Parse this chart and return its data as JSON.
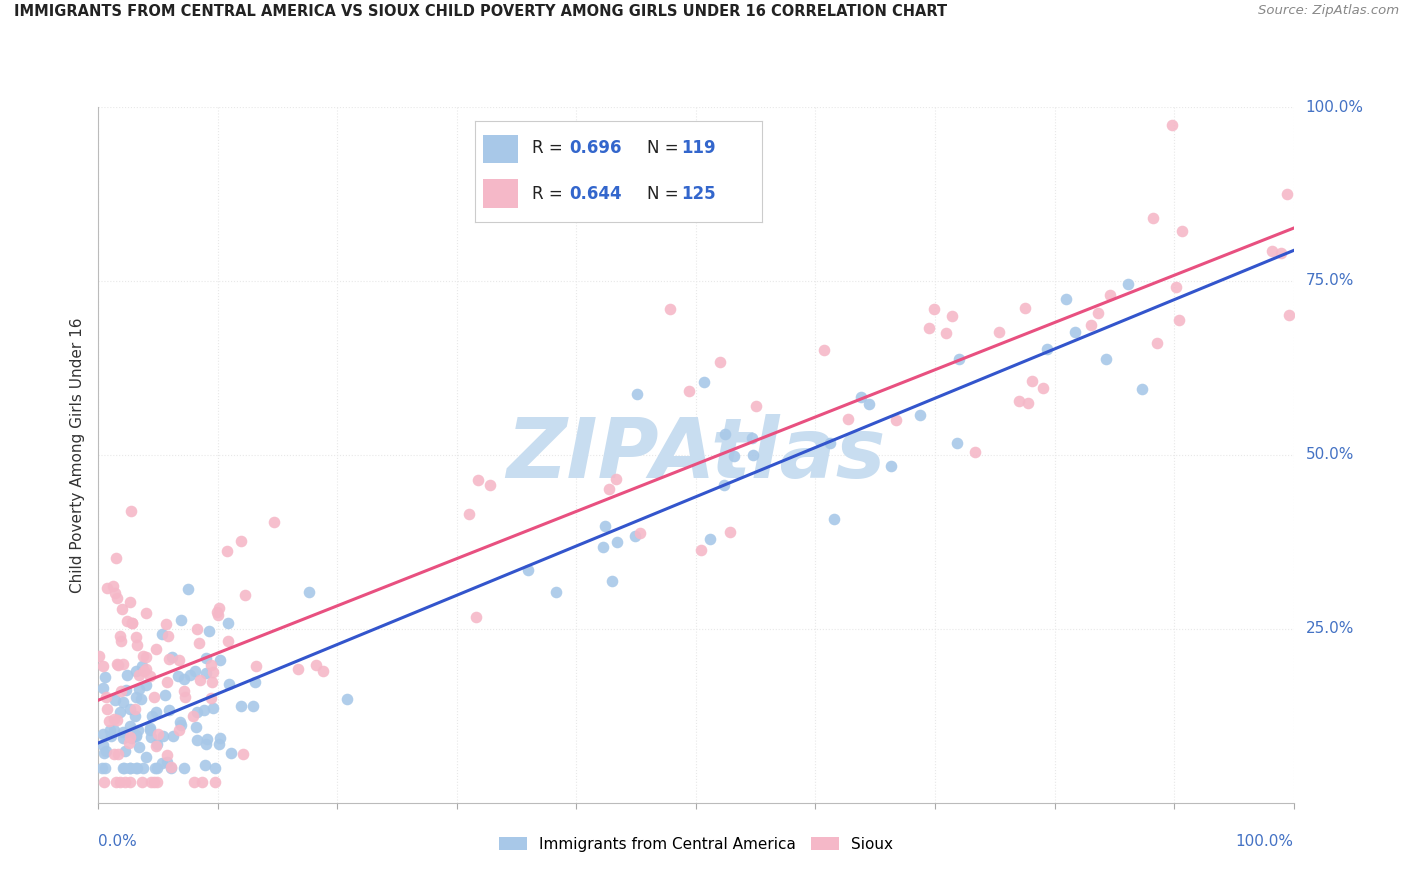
{
  "title": "IMMIGRANTS FROM CENTRAL AMERICA VS SIOUX CHILD POVERTY AMONG GIRLS UNDER 16 CORRELATION CHART",
  "source": "Source: ZipAtlas.com",
  "ylabel": "Child Poverty Among Girls Under 16",
  "ytick_labels": [
    "25.0%",
    "50.0%",
    "75.0%",
    "100.0%"
  ],
  "legend_blue_r": "0.696",
  "legend_blue_n": "119",
  "legend_pink_r": "0.644",
  "legend_pink_n": "125",
  "legend_label_blue": "Immigrants from Central America",
  "legend_label_pink": "Sioux",
  "blue_dot_color": "#a8c8e8",
  "pink_dot_color": "#f5b8c8",
  "blue_line_color": "#3355cc",
  "pink_line_color": "#e85080",
  "r_value_color": "#3366cc",
  "n_value_color": "#3366cc",
  "watermark_color": "#c8ddf0",
  "background_color": "#ffffff",
  "grid_color": "#e8e8e8",
  "title_color": "#222222",
  "source_color": "#888888",
  "ylabel_color": "#333333",
  "tick_label_color": "#4472c4"
}
